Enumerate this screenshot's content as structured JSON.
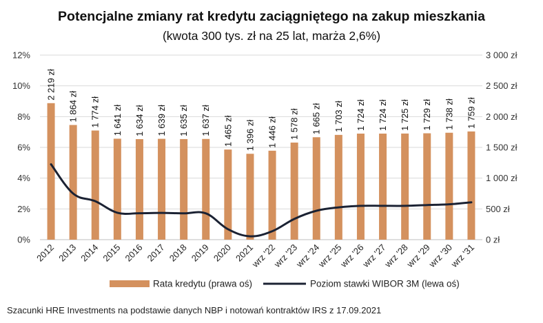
{
  "chart_data": {
    "type": "bar",
    "title": "Potencjalne zmiany rat kredytu zaciągniętego na zakup mieszkania",
    "subtitle": "(kwota 300 tys. zł na 25 lat, marża 2,6%)",
    "source": "Szacunki HRE Investments na podstawie danych NBP i notowań kontraktów IRS z 17.09.2021",
    "categories": [
      "2012",
      "2013",
      "2014",
      "2015",
      "2016",
      "2017",
      "2018",
      "2019",
      "2020",
      "2021",
      "wrz '22",
      "wrz '23",
      "wrz '24",
      "wrz '25",
      "wrz '26",
      "wrz '27",
      "wrz '28",
      "wrz '29",
      "wrz '30",
      "wrz '31"
    ],
    "series": [
      {
        "name": "Rata kredytu (prawa oś)",
        "type": "bar",
        "axis": "right",
        "color": "#D4915E",
        "values": [
          2219,
          1864,
          1774,
          1641,
          1634,
          1639,
          1635,
          1637,
          1465,
          1396,
          1446,
          1578,
          1665,
          1703,
          1724,
          1724,
          1725,
          1729,
          1738,
          1759
        ],
        "labels": [
          "2 219 zł",
          "1 864 zł",
          "1 774 zł",
          "1 641 zł",
          "1 634 zł",
          "1 639 zł",
          "1 635 zł",
          "1 637 zł",
          "1 465 zł",
          "1 396 zł",
          "1 446 zł",
          "1 578 zł",
          "1 665 zł",
          "1 703 zł",
          "1 724 zł",
          "1 724 zł",
          "1 725 zł",
          "1 729 zł",
          "1 738 zł",
          "1 759 zł"
        ]
      },
      {
        "name": "Poziom stawki WIBOR 3M (lewa oś)",
        "type": "line",
        "axis": "left",
        "color": "#1B2233",
        "values": [
          4.9,
          3.0,
          2.5,
          1.75,
          1.72,
          1.74,
          1.71,
          1.71,
          0.68,
          0.22,
          0.55,
          1.35,
          1.88,
          2.1,
          2.2,
          2.2,
          2.2,
          2.25,
          2.3,
          2.43
        ]
      }
    ],
    "y_left": {
      "min": 0,
      "max": 12,
      "ticks": [
        "0%",
        "2%",
        "4%",
        "6%",
        "8%",
        "10%",
        "12%"
      ]
    },
    "y_right": {
      "min": 0,
      "max": 3000,
      "ticks": [
        "0 zł",
        "500 zł",
        "1 000 zł",
        "1 500 zł",
        "2 000 zł",
        "2 500 zł",
        "3 000 zł"
      ]
    },
    "grid": true,
    "legend": "bottom"
  }
}
